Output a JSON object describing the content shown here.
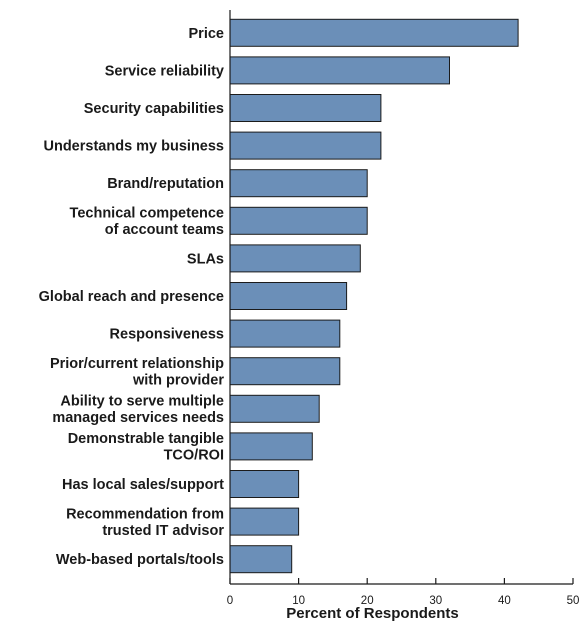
{
  "chart_data": {
    "type": "bar",
    "orientation": "horizontal",
    "categories": [
      [
        "Price"
      ],
      [
        "Service reliability"
      ],
      [
        "Security capabilities"
      ],
      [
        "Understands my business"
      ],
      [
        "Brand/reputation"
      ],
      [
        "Technical competence",
        "of account teams"
      ],
      [
        "SLAs"
      ],
      [
        "Global reach and presence"
      ],
      [
        "Responsiveness"
      ],
      [
        "Prior/current relationship",
        "with provider"
      ],
      [
        "Ability to serve multiple",
        "managed services needs"
      ],
      [
        "Demonstrable tangible",
        "TCO/ROI"
      ],
      [
        "Has local sales/support"
      ],
      [
        "Recommendation from",
        "trusted IT advisor"
      ],
      [
        "Web-based portals/tools"
      ]
    ],
    "values": [
      42,
      32,
      22,
      22,
      20,
      20,
      19,
      17,
      16,
      16,
      13,
      12,
      10,
      10,
      9
    ],
    "xlabel": "Percent of Respondents",
    "xlim": [
      0,
      50
    ],
    "xticks": [
      0,
      10,
      20,
      30,
      40,
      50
    ],
    "bar_color": "#6b8fb8",
    "bar_edge_color": "#1b1b1b",
    "grid": false,
    "legend": "none"
  }
}
